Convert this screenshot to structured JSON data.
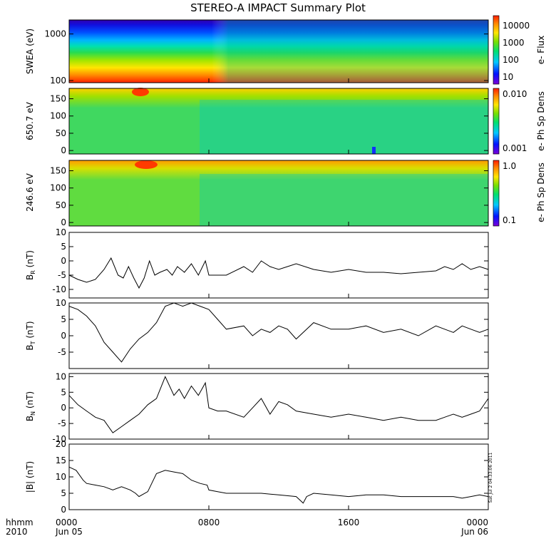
{
  "title": "STEREO-A IMPACT Summary Plot",
  "stamp": "Sat Jul  2 04:33:06 2011",
  "time_axis": {
    "label_row1": "hhmm",
    "label_row2": "2010",
    "ticks": [
      {
        "hours": 0,
        "label": "0000",
        "sub": "Jun 05"
      },
      {
        "hours": 8,
        "label": "0800",
        "sub": ""
      },
      {
        "hours": 16,
        "label": "1600",
        "sub": ""
      },
      {
        "hours": 24,
        "label": "0000",
        "sub": "Jun 06"
      }
    ],
    "range_hours": [
      0,
      24
    ]
  },
  "colors": {
    "line": "#000000",
    "spectrum": [
      "#7a00d8",
      "#0014ff",
      "#00c8ff",
      "#00e070",
      "#7ae000",
      "#ffe600",
      "#ff8c00",
      "#ff1e00"
    ]
  },
  "chart_data": [
    {
      "type": "heatmap",
      "id": "swea",
      "ylabel": "SWEA (eV)",
      "yscale": "log",
      "ylim": [
        90,
        2000
      ],
      "yticks": [
        100,
        1000
      ],
      "yticklabels": [
        "100",
        "1000"
      ],
      "colorbar": {
        "label": "e- Flux",
        "scale": "log",
        "ticks": [
          "10000",
          "1000",
          "100",
          "10"
        ]
      }
    },
    {
      "type": "heatmap",
      "id": "pad650",
      "ylabel": "650.7 eV",
      "ylim": [
        -10,
        180
      ],
      "yticks": [
        0,
        50,
        100,
        150
      ],
      "yticklabels": [
        "0",
        "50",
        "100",
        "150"
      ],
      "colorbar": {
        "label": "e- Ph Sp Dens",
        "scale": "log",
        "ticks": [
          "0.010",
          "0.001"
        ]
      }
    },
    {
      "type": "heatmap",
      "id": "pad246",
      "ylabel": "246.6 eV",
      "ylim": [
        -10,
        180
      ],
      "yticks": [
        0,
        50,
        100,
        150
      ],
      "yticklabels": [
        "0",
        "50",
        "100",
        "150"
      ],
      "colorbar": {
        "label": "e- Ph Sp Dens",
        "scale": "log",
        "ticks": [
          "1.0",
          "0.1"
        ]
      }
    },
    {
      "type": "line",
      "id": "br",
      "ylabel_main": "B",
      "ylabel_sub": "R",
      "ylabel_unit": " (nT)",
      "ylim": [
        -13,
        10
      ],
      "yticks": [
        -10,
        -5,
        0,
        5,
        10
      ],
      "yticklabels": [
        "-10",
        "-5",
        "0",
        "5",
        "10"
      ],
      "x": [
        0,
        0.5,
        1,
        1.5,
        2,
        2.4,
        2.8,
        3.1,
        3.4,
        3.7,
        4,
        4.3,
        4.6,
        4.9,
        5.2,
        5.6,
        5.9,
        6.2,
        6.6,
        7,
        7.4,
        7.8,
        8,
        9,
        10,
        10.5,
        11,
        11.5,
        12,
        12.5,
        13,
        14,
        15,
        16,
        17,
        18,
        19,
        20,
        21,
        21.5,
        22,
        22.5,
        23,
        23.5,
        24
      ],
      "y": [
        -5,
        -6.5,
        -7.5,
        -6.5,
        -3,
        1,
        -5,
        -6,
        -2,
        -6,
        -9.5,
        -6,
        0,
        -5,
        -4,
        -3,
        -5,
        -2,
        -4,
        -1,
        -5,
        0,
        -5,
        -5,
        -2,
        -4,
        0,
        -2,
        -3,
        -2,
        -1,
        -3,
        -4,
        -3,
        -4,
        -4,
        -4.5,
        -4,
        -3.5,
        -2,
        -3,
        -1,
        -3,
        -2,
        -3
      ]
    },
    {
      "type": "line",
      "id": "bt",
      "ylabel_main": "B",
      "ylabel_sub": "T",
      "ylabel_unit": " (nT)",
      "ylim": [
        -10,
        10
      ],
      "yticks": [
        -5,
        0,
        5,
        10
      ],
      "yticklabels": [
        "-5",
        "0",
        "5",
        "10"
      ],
      "x": [
        0,
        0.5,
        1,
        1.5,
        2,
        2.5,
        3,
        3.5,
        4,
        4.5,
        5,
        5.5,
        6,
        6.5,
        7,
        7.5,
        8,
        8.5,
        9,
        10,
        10.5,
        11,
        11.5,
        12,
        12.5,
        13,
        14,
        15,
        16,
        17,
        18,
        19,
        20,
        21,
        21.5,
        22,
        22.5,
        23,
        23.5,
        24
      ],
      "y": [
        9,
        8,
        6,
        3,
        -2,
        -5,
        -8,
        -4,
        -1,
        1,
        4,
        9,
        10,
        9,
        10,
        9,
        8,
        5,
        2,
        3,
        0,
        2,
        1,
        3,
        2,
        -1,
        4,
        2,
        2,
        3,
        1,
        2,
        0,
        3,
        2,
        1,
        3,
        2,
        1,
        2
      ]
    },
    {
      "type": "line",
      "id": "bn",
      "ylabel_main": "B",
      "ylabel_sub": "N",
      "ylabel_unit": " (nT)",
      "ylim": [
        -10,
        11
      ],
      "yticks": [
        -10,
        -5,
        0,
        5,
        10
      ],
      "yticklabels": [
        "-10",
        "-5",
        "0",
        "5",
        "10"
      ],
      "x": [
        0,
        0.5,
        1,
        1.5,
        2,
        2.5,
        3,
        3.5,
        4,
        4.5,
        5,
        5.5,
        6,
        6.3,
        6.6,
        7,
        7.4,
        7.8,
        8,
        8.5,
        9,
        10,
        10.5,
        11,
        11.5,
        12,
        12.5,
        13,
        14,
        15,
        16,
        17,
        18,
        19,
        20,
        21,
        21.5,
        22,
        22.5,
        23,
        23.5,
        24
      ],
      "y": [
        4,
        1,
        -1,
        -3,
        -4,
        -8,
        -6,
        -4,
        -2,
        1,
        3,
        10,
        4,
        6,
        3,
        7,
        4,
        8,
        0,
        -1,
        -1,
        -3,
        0,
        3,
        -2,
        2,
        1,
        -1,
        -2,
        -3,
        -2,
        -3,
        -4,
        -3,
        -4,
        -4,
        -3,
        -2,
        -3,
        -2,
        -1,
        3
      ]
    },
    {
      "type": "line",
      "id": "bmag",
      "ylabel_main": "|B|",
      "ylabel_sub": "",
      "ylabel_unit": " (nT)",
      "ylim": [
        0,
        20
      ],
      "yticks": [
        0,
        5,
        10,
        15,
        20
      ],
      "yticklabels": [
        "0",
        "5",
        "10",
        "15",
        "20"
      ],
      "x": [
        0,
        0.4,
        0.8,
        1,
        1.5,
        2,
        2.5,
        3,
        3.5,
        3.8,
        4,
        4.5,
        5,
        5.5,
        6,
        6.5,
        7,
        7.5,
        7.9,
        8,
        8.5,
        9,
        10,
        11,
        12,
        13,
        13.4,
        13.6,
        14,
        15,
        16,
        17,
        18,
        19,
        20,
        21,
        22,
        22.5,
        23,
        23.5,
        24
      ],
      "y": [
        13,
        12,
        9,
        8,
        7.5,
        7,
        6,
        7,
        6,
        5,
        4,
        5.5,
        11,
        12,
        11.5,
        11,
        9,
        8,
        7.5,
        6,
        5.5,
        5,
        5,
        5,
        4.5,
        4,
        2,
        4,
        5,
        4.5,
        4,
        4.5,
        4.5,
        4,
        4,
        4,
        4,
        3.5,
        4,
        4.5,
        4
      ]
    }
  ]
}
